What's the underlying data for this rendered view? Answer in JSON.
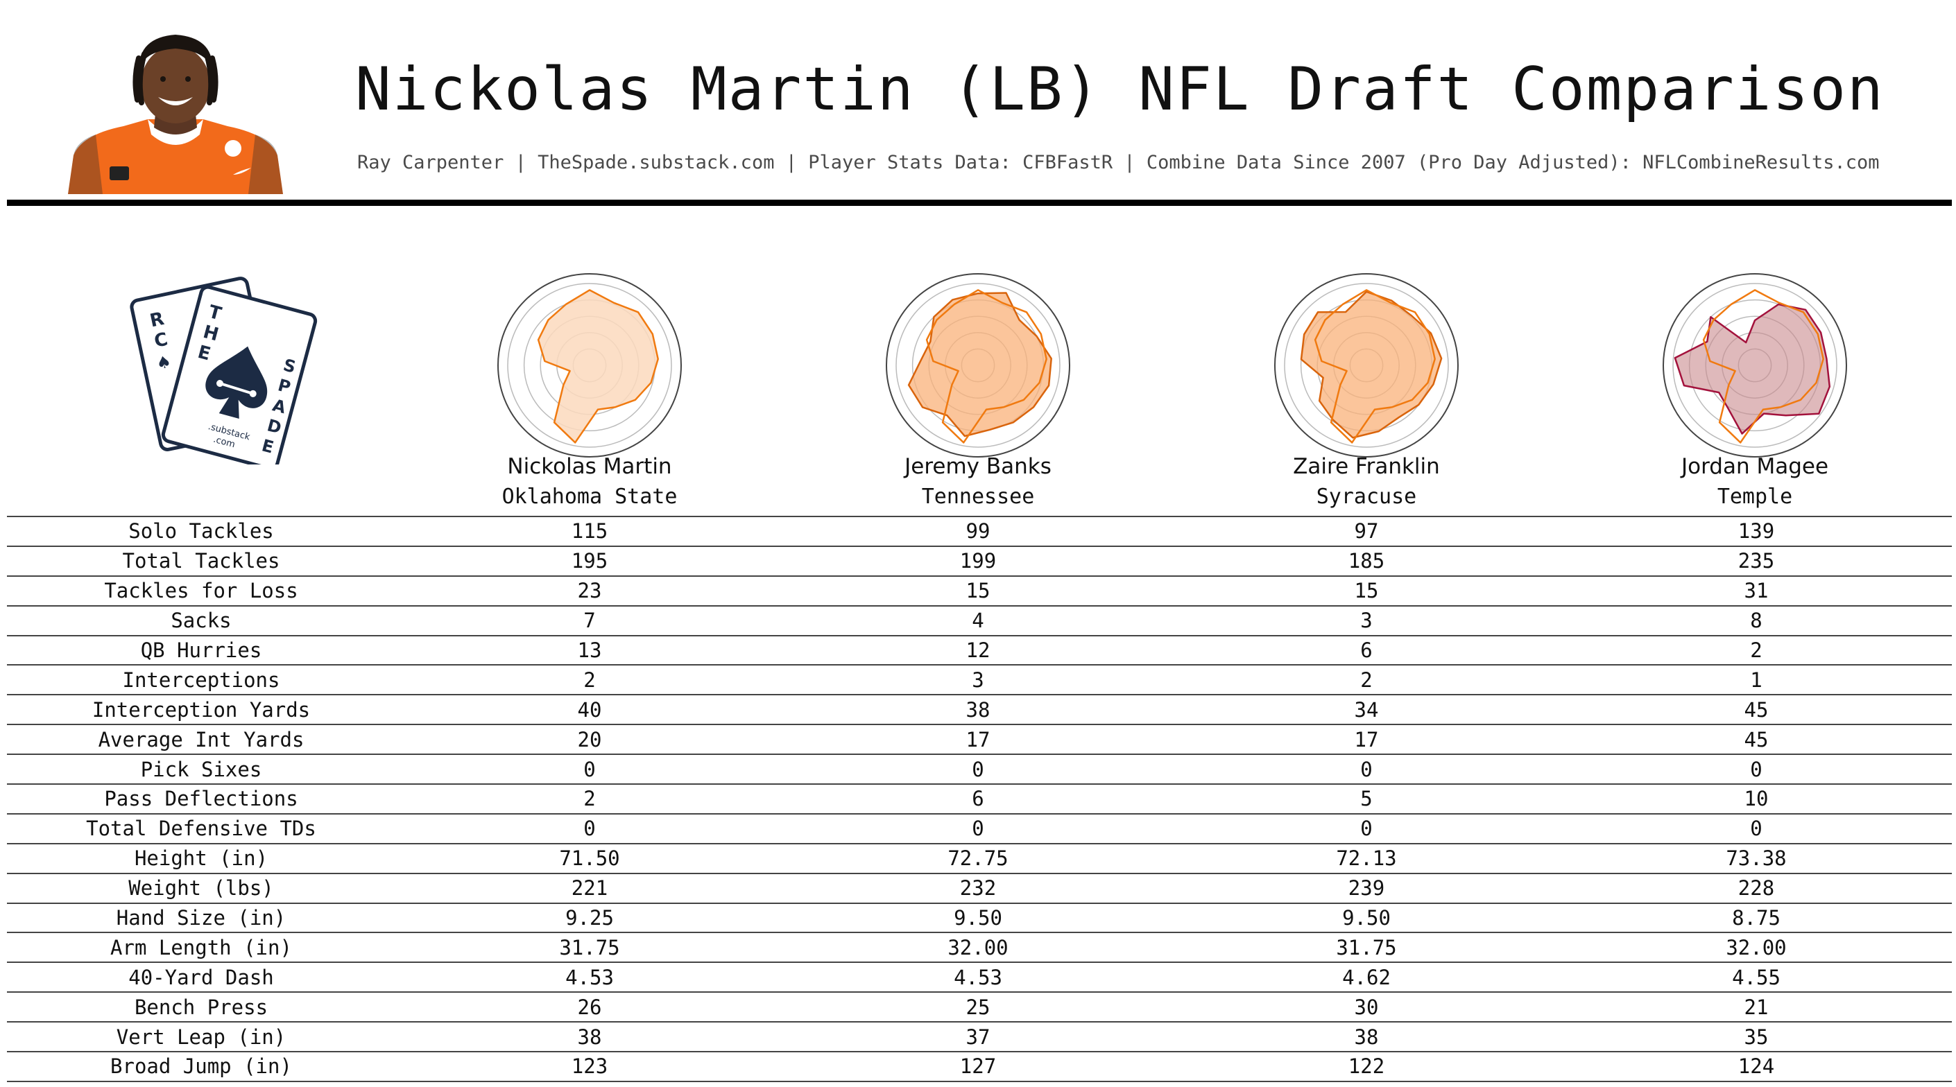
{
  "header": {
    "title": "Nickolas Martin (LB) NFL Draft Comparison",
    "credits": "Ray Carpenter | TheSpade.substack.com | Player Stats Data: CFBFastR | Combine Data Since 2007 (Pro Day Adjusted): NFLCombineResults.com",
    "photo_icon": "player-headshot"
  },
  "logo": {
    "text_the": "THE",
    "text_spade": "SPADE",
    "text_rc": "RC",
    "text_substack": ".substack",
    "text_com": ".com",
    "icon": "spade-card-logo"
  },
  "colors": {
    "orange_stroke": "#f07a10",
    "orange_fill": "#f9b27a",
    "maroon_stroke": "#a3123c",
    "maroon_fill": "#c98a8e",
    "grid": "#bbbbbb",
    "outer_ring": "#444444"
  },
  "chart_data": [
    {
      "type": "radar",
      "player": "Nickolas Martin",
      "school": "Oklahoma State",
      "axes": [
        "Solo Tackles",
        "Total Tackles",
        "Tackles for Loss",
        "Sacks",
        "QB Hurries",
        "Interceptions",
        "Interception Yards",
        "Average Int Yards",
        "Pass Deflections",
        "Height (in)",
        "Weight (lbs)",
        "Hand Size (in)",
        "Arm Length (in)",
        "40-Yard Dash",
        "Bench Press",
        "Vert Leap (in)",
        "Broad Jump (in)"
      ],
      "range": [
        0,
        1
      ],
      "series": [
        {
          "name": "Nickolas Martin",
          "values": [
            0.92,
            0.82,
            0.88,
            0.86,
            0.84,
            0.78,
            0.7,
            0.6,
            0.55,
            0.96,
            0.82,
            0.4,
            0.25,
            0.55,
            0.7,
            0.75,
            0.8
          ],
          "style": "orange-light"
        }
      ]
    },
    {
      "type": "radar",
      "player": "Jeremy Banks",
      "school": "Tennessee",
      "axes": [
        "Solo Tackles",
        "Total Tackles",
        "Tackles for Loss",
        "Sacks",
        "QB Hurries",
        "Interceptions",
        "Interception Yards",
        "Average Int Yards",
        "Pass Deflections",
        "Height (in)",
        "Weight (lbs)",
        "Hand Size (in)",
        "Arm Length (in)",
        "40-Yard Dash",
        "Bench Press",
        "Vert Leap (in)",
        "Broad Jump (in)"
      ],
      "range": [
        0,
        1
      ],
      "series": [
        {
          "name": "Nickolas Martin",
          "values": [
            0.92,
            0.82,
            0.88,
            0.86,
            0.84,
            0.78,
            0.7,
            0.6,
            0.55,
            0.96,
            0.82,
            0.4,
            0.25,
            0.55,
            0.7,
            0.75,
            0.8
          ],
          "style": "orange-line"
        },
        {
          "name": "Jeremy Banks",
          "values": [
            0.88,
            0.95,
            0.75,
            0.8,
            0.9,
            0.9,
            0.85,
            0.82,
            0.8,
            0.88,
            0.72,
            0.85,
            0.88,
            0.7,
            0.65,
            0.8,
            0.86
          ],
          "style": "orange-fill"
        }
      ]
    },
    {
      "type": "radar",
      "player": "Zaire Franklin",
      "school": "Syracuse",
      "axes": [
        "Solo Tackles",
        "Total Tackles",
        "Tackles for Loss",
        "Sacks",
        "QB Hurries",
        "Interceptions",
        "Interception Yards",
        "Average Int Yards",
        "Pass Deflections",
        "Height (in)",
        "Weight (lbs)",
        "Hand Size (in)",
        "Arm Length (in)",
        "40-Yard Dash",
        "Bench Press",
        "Vert Leap (in)",
        "Broad Jump (in)"
      ],
      "range": [
        0,
        1
      ],
      "series": [
        {
          "name": "Nickolas Martin",
          "values": [
            0.92,
            0.82,
            0.88,
            0.86,
            0.84,
            0.78,
            0.7,
            0.6,
            0.55,
            0.96,
            0.82,
            0.4,
            0.25,
            0.55,
            0.7,
            0.75,
            0.8
          ],
          "style": "orange-line"
        },
        {
          "name": "Zaire Franklin",
          "values": [
            0.9,
            0.85,
            0.82,
            0.88,
            0.92,
            0.85,
            0.8,
            0.75,
            0.82,
            0.9,
            0.78,
            0.72,
            0.55,
            0.8,
            0.85,
            0.88,
            0.7
          ],
          "style": "orange-fill"
        }
      ]
    },
    {
      "type": "radar",
      "player": "Jordan Magee",
      "school": "Temple",
      "axes": [
        "Solo Tackles",
        "Total Tackles",
        "Tackles for Loss",
        "Sacks",
        "QB Hurries",
        "Interceptions",
        "Interception Yards",
        "Average Int Yards",
        "Pass Deflections",
        "Height (in)",
        "Weight (lbs)",
        "Hand Size (in)",
        "Arm Length (in)",
        "40-Yard Dash",
        "Bench Press",
        "Vert Leap (in)",
        "Broad Jump (in)"
      ],
      "range": [
        0,
        1
      ],
      "series": [
        {
          "name": "Nickolas Martin",
          "values": [
            0.92,
            0.82,
            0.88,
            0.86,
            0.84,
            0.78,
            0.7,
            0.6,
            0.55,
            0.96,
            0.82,
            0.4,
            0.25,
            0.55,
            0.7,
            0.75,
            0.8
          ],
          "style": "orange-line"
        },
        {
          "name": "Jordan Magee",
          "values": [
            0.55,
            0.8,
            0.92,
            0.9,
            0.88,
            0.95,
            0.98,
            0.72,
            0.6,
            0.85,
            0.62,
            0.55,
            0.9,
            0.98,
            0.65,
            0.8,
            0.3
          ],
          "style": "maroon"
        }
      ]
    }
  ],
  "table": {
    "players": [
      "Nickolas Martin",
      "Jeremy Banks",
      "Zaire Franklin",
      "Jordan Magee"
    ],
    "rows": [
      {
        "label": "Solo Tackles",
        "values": [
          "115",
          "99",
          "97",
          "139"
        ]
      },
      {
        "label": "Total Tackles",
        "values": [
          "195",
          "199",
          "185",
          "235"
        ]
      },
      {
        "label": "Tackles for Loss",
        "values": [
          "23",
          "15",
          "15",
          "31"
        ]
      },
      {
        "label": "Sacks",
        "values": [
          "7",
          "4",
          "3",
          "8"
        ]
      },
      {
        "label": "QB Hurries",
        "values": [
          "13",
          "12",
          "6",
          "2"
        ]
      },
      {
        "label": "Interceptions",
        "values": [
          "2",
          "3",
          "2",
          "1"
        ]
      },
      {
        "label": "Interception Yards",
        "values": [
          "40",
          "38",
          "34",
          "45"
        ]
      },
      {
        "label": "Average Int Yards",
        "values": [
          "20",
          "17",
          "17",
          "45"
        ]
      },
      {
        "label": "Pick Sixes",
        "values": [
          "0",
          "0",
          "0",
          "0"
        ]
      },
      {
        "label": "Pass Deflections",
        "values": [
          "2",
          "6",
          "5",
          "10"
        ]
      },
      {
        "label": "Total Defensive TDs",
        "values": [
          "0",
          "0",
          "0",
          "0"
        ]
      },
      {
        "label": "Height (in)",
        "values": [
          "71.50",
          "72.75",
          "72.13",
          "73.38"
        ]
      },
      {
        "label": "Weight (lbs)",
        "values": [
          "221",
          "232",
          "239",
          "228"
        ]
      },
      {
        "label": "Hand Size (in)",
        "values": [
          "9.25",
          "9.50",
          "9.50",
          "8.75"
        ]
      },
      {
        "label": "Arm Length (in)",
        "values": [
          "31.75",
          "32.00",
          "31.75",
          "32.00"
        ]
      },
      {
        "label": "40-Yard Dash",
        "values": [
          "4.53",
          "4.53",
          "4.62",
          "4.55"
        ]
      },
      {
        "label": "Bench Press",
        "values": [
          "26",
          "25",
          "30",
          "21"
        ]
      },
      {
        "label": "Vert Leap (in)",
        "values": [
          "38",
          "37",
          "38",
          "35"
        ]
      },
      {
        "label": "Broad Jump (in)",
        "values": [
          "123",
          "127",
          "122",
          "124"
        ]
      }
    ]
  }
}
